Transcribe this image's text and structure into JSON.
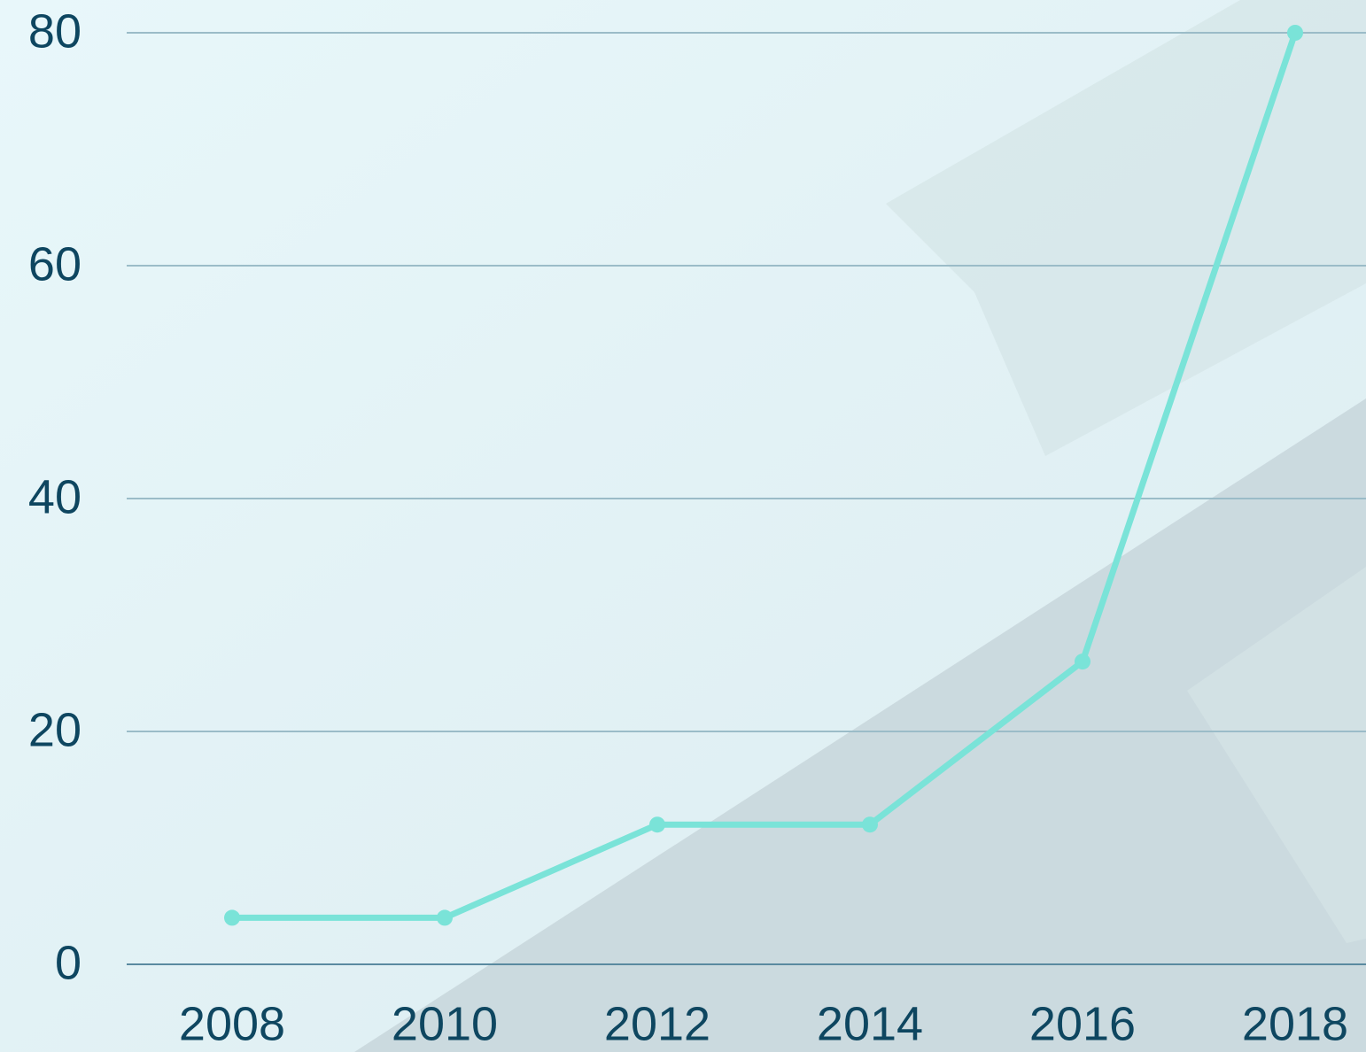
{
  "chart_data": {
    "type": "line",
    "categories": [
      "2008",
      "2010",
      "2012",
      "2014",
      "2016",
      "2018"
    ],
    "series": [
      {
        "color": "#7ae3d8",
        "values": [
          4,
          4,
          12,
          12,
          26,
          80
        ]
      }
    ],
    "ylim": [
      0,
      80
    ],
    "yticks": [
      0,
      20,
      40,
      60,
      80
    ],
    "grid": true
  }
}
